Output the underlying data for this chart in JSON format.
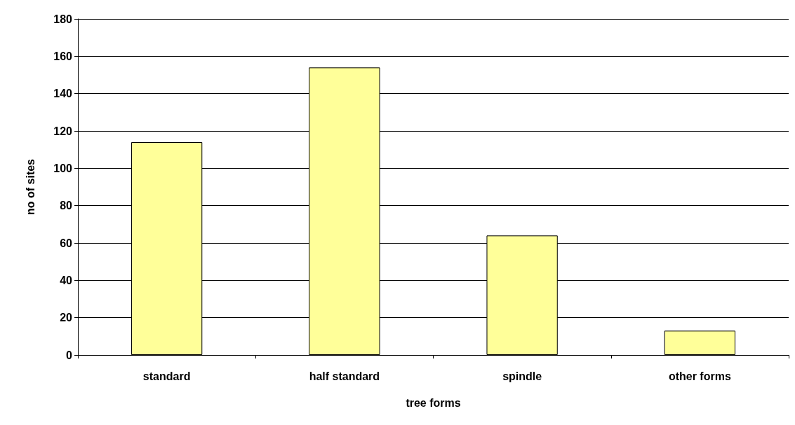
{
  "chart_data": {
    "type": "bar",
    "xlabel": "tree forms",
    "ylabel": "no of sites",
    "categories": [
      "standard",
      "half standard",
      "spindle",
      "other forms"
    ],
    "values": [
      114,
      154,
      64,
      13
    ],
    "color": "#ffff99",
    "ylim": [
      0,
      180
    ],
    "yticks": [
      0,
      20,
      40,
      60,
      80,
      100,
      120,
      140,
      160,
      180
    ],
    "grid": "y"
  }
}
